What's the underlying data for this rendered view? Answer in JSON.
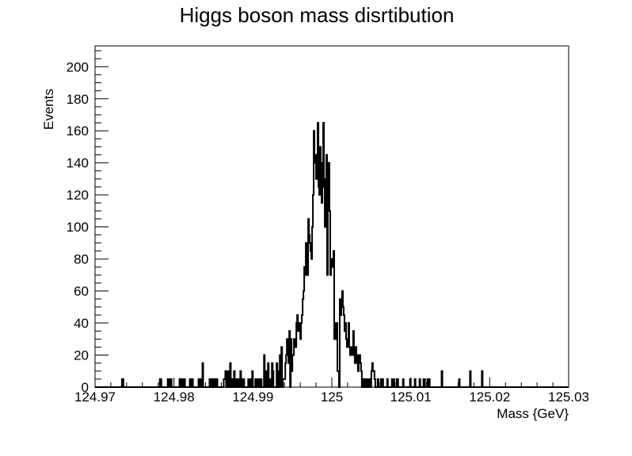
{
  "chart_data": {
    "type": "histogram",
    "title": "Higgs boson mass disrtibution",
    "xlabel": "Mass {GeV}",
    "ylabel": "Events",
    "xlim": [
      124.97,
      125.03
    ],
    "ylim": [
      0,
      213
    ],
    "x_ticks": [
      "124.97",
      "124.98",
      "124.99",
      "125",
      "125.01",
      "125.02",
      "125.03"
    ],
    "x_tick_values": [
      124.97,
      124.98,
      124.99,
      125.0,
      125.01,
      125.02,
      125.03
    ],
    "y_ticks": [
      "0",
      "20",
      "40",
      "60",
      "80",
      "100",
      "120",
      "140",
      "160",
      "180",
      "200"
    ],
    "y_tick_values": [
      0,
      20,
      40,
      60,
      80,
      100,
      120,
      140,
      160,
      180,
      200
    ],
    "bin_start": 124.97,
    "bin_width": 0.0001,
    "values": [
      0,
      0,
      0,
      0,
      0,
      0,
      0,
      0,
      0,
      0,
      0,
      0,
      0,
      0,
      0,
      0,
      0,
      0,
      0,
      0,
      0,
      0,
      0,
      0,
      0,
      0,
      0,
      0,
      0,
      0,
      0,
      0,
      0,
      0,
      5,
      5,
      0,
      0,
      0,
      0,
      0,
      0,
      0,
      0,
      0,
      0,
      0,
      0,
      0,
      0,
      0,
      0,
      0,
      0,
      0,
      0,
      0,
      0,
      0,
      0,
      0,
      0,
      0,
      0,
      0,
      0,
      0,
      0,
      0,
      0,
      0,
      0,
      0,
      0,
      0,
      0,
      0,
      0,
      0,
      0,
      0,
      0,
      5,
      5,
      0,
      0,
      0,
      0,
      0,
      0,
      0,
      0,
      5,
      0,
      5,
      0,
      5,
      0,
      0,
      0,
      0,
      0,
      0,
      0,
      0,
      0,
      0,
      5,
      0,
      0,
      5,
      0,
      0,
      5,
      0,
      0,
      0,
      0,
      0,
      0,
      5,
      0,
      0,
      5,
      0,
      0,
      0,
      0,
      0,
      0,
      0,
      5,
      0,
      5,
      0,
      0,
      15,
      0,
      0,
      0,
      0,
      0,
      0,
      0,
      0,
      5,
      0,
      5,
      0,
      5,
      0,
      0,
      5,
      0,
      5,
      0,
      0,
      0,
      0,
      0,
      0,
      0,
      0,
      5,
      5,
      10,
      0,
      0,
      10,
      0,
      0,
      15,
      0,
      0,
      5,
      0,
      10,
      0,
      5,
      0,
      0,
      5,
      5,
      0,
      10,
      0,
      5,
      0,
      5,
      0,
      0,
      0,
      0,
      0,
      5,
      0,
      5,
      0,
      0,
      10,
      0,
      0,
      0,
      5,
      0,
      0,
      5,
      0,
      0,
      5,
      5,
      0,
      0,
      0,
      20,
      0,
      10,
      0,
      0,
      15,
      0,
      5,
      0,
      0,
      15,
      10,
      0,
      0,
      0,
      0,
      15,
      0,
      10,
      0,
      20,
      0,
      25,
      0,
      5,
      5,
      5,
      15,
      20,
      30,
      20,
      15,
      35,
      0,
      30,
      10,
      20,
      20,
      30,
      30,
      25,
      40,
      45,
      35,
      40,
      35,
      30,
      40,
      45,
      55,
      60,
      75,
      70,
      90,
      70,
      70,
      105,
      95,
      90,
      85,
      80,
      100,
      120,
      160,
      145,
      140,
      130,
      145,
      165,
      125,
      120,
      150,
      140,
      115,
      125,
      165,
      130,
      100,
      130,
      145,
      70,
      140,
      140,
      110,
      70,
      80,
      75,
      80,
      85,
      30,
      40,
      30,
      40,
      10,
      10,
      0,
      55,
      45,
      55,
      60,
      50,
      45,
      35,
      40,
      30,
      25,
      30,
      40,
      25,
      20,
      25,
      20,
      25,
      35,
      20,
      15,
      25,
      15,
      20,
      10,
      15,
      20,
      15,
      10,
      0,
      5,
      5,
      0,
      0,
      5,
      5,
      0,
      0,
      5,
      0,
      0,
      10,
      15,
      10,
      10,
      5,
      0,
      0,
      0,
      5,
      0,
      0,
      0,
      5,
      0,
      5,
      0,
      0,
      0,
      0,
      0,
      5,
      0,
      0,
      0,
      0,
      0,
      5,
      0,
      5,
      0,
      0,
      0,
      5,
      5,
      0,
      0,
      0,
      0,
      0,
      0,
      5,
      0,
      0,
      0,
      0,
      0,
      0,
      0,
      0,
      5,
      0,
      0,
      0,
      0,
      0,
      5,
      0,
      0,
      0,
      0,
      0,
      5,
      0,
      0,
      0,
      0,
      5,
      5,
      0,
      0,
      0,
      5,
      0,
      5,
      0,
      0,
      0,
      0,
      0,
      0,
      0,
      0,
      0,
      0,
      0,
      0,
      0,
      0,
      0,
      10,
      0,
      0,
      0,
      0,
      0,
      0,
      0,
      0,
      0,
      0,
      0,
      0,
      0,
      0,
      0,
      0,
      0,
      0,
      0,
      0,
      0,
      5,
      0,
      0,
      0,
      0,
      0,
      0,
      0,
      0,
      0,
      0,
      0,
      0,
      0,
      10,
      0,
      0,
      0,
      0,
      0,
      0,
      0,
      0,
      0,
      0,
      0,
      0,
      0,
      0,
      10,
      0,
      0,
      0,
      0,
      0,
      0,
      0,
      0,
      0,
      0,
      0,
      0,
      0,
      0,
      0,
      0,
      0,
      0,
      0,
      0,
      0,
      0,
      0,
      0,
      0,
      0,
      0,
      0,
      0,
      0,
      0,
      0,
      0,
      0,
      0,
      0,
      0,
      0,
      0,
      0,
      0,
      0,
      0,
      0,
      0,
      0,
      0,
      0,
      0,
      0,
      0,
      0,
      0,
      0,
      0,
      0,
      0,
      0,
      0,
      0,
      0,
      0,
      0,
      0,
      0,
      0,
      0,
      0,
      0,
      0,
      0,
      0,
      0,
      0,
      0,
      0,
      0,
      0,
      0,
      0,
      0,
      0,
      0,
      0,
      0,
      0,
      0,
      0,
      0,
      0,
      0,
      0,
      0,
      0,
      0,
      0,
      0,
      0,
      0,
      0,
      0,
      0,
      0,
      0,
      0,
      0,
      0,
      0,
      0
    ],
    "grid": false,
    "legend": "none",
    "line_color": "#000000"
  }
}
